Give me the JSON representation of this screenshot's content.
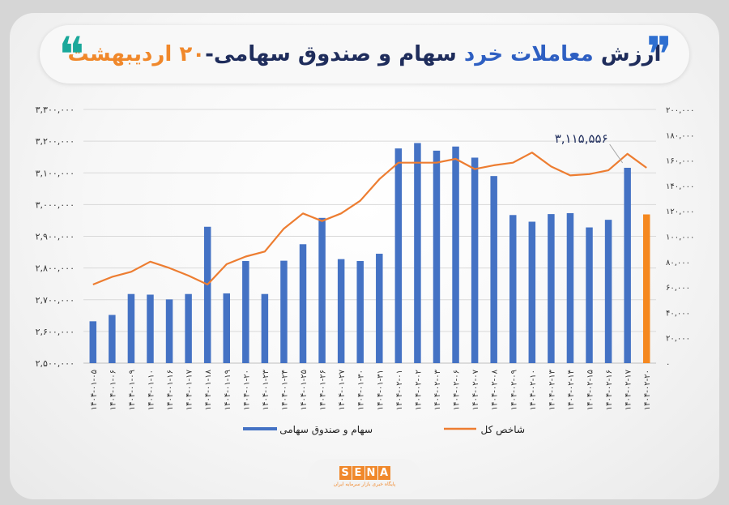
{
  "header": {
    "title_part1": "ارزش",
    "title_part2": "معاملات خرد",
    "title_part3": "سهام و صندوق سهامی-",
    "title_part4": "۲۰ اردیبهشت",
    "quote_open": "❞",
    "quote_close": "❝"
  },
  "logo": {
    "word": "SENA",
    "subtitle": "پایگاه خبری بازار سرمایه ایران"
  },
  "colors": {
    "bar": "#4472c4",
    "bar_highlight": "#f5881f",
    "line": "#ed7d31"
  },
  "chart_data": {
    "type": "bar",
    "categories": [
      "۱۴۰۴-۰۱-۰۵",
      "۱۴۰۴-۰۱-۰۶",
      "۱۴۰۴-۰۱-۰۹",
      "۱۴۰۴-۰۱-۱۰",
      "۱۴۰۴-۰۱-۱۶",
      "۱۴۰۴-۰۱-۱۷",
      "۱۴۰۴-۰۱-۱۸",
      "۱۴۰۴-۰۱-۱۹",
      "۱۴۰۴-۰۱-۲۰",
      "۱۴۰۴-۰۱-۲۳",
      "۱۴۰۴-۰۱-۲۴",
      "۱۴۰۴-۰۱-۲۵",
      "۱۴۰۴-۰۱-۲۶",
      "۱۴۰۴-۰۱-۲۷",
      "۱۴۰۴-۰۱-۳۰",
      "۱۴۰۴-۰۱-۳۱",
      "۱۴۰۴-۰۲-۰۱",
      "۱۴۰۴-۰۲-۰۲",
      "۱۴۰۴-۰۲-۰۳",
      "۱۴۰۴-۰۲-۰۶",
      "۱۴۰۴-۰۲-۰۷",
      "۱۴۰۴-۰۲-۰۸",
      "۱۴۰۴-۰۲-۰۹",
      "۱۴۰۴-۰۲-۱۰",
      "۱۴۰۴-۰۲-۱۳",
      "۱۴۰۴-۰۲-۱۴",
      "۱۴۰۴-۰۲-۱۵",
      "۱۴۰۴-۰۲-۱۶",
      "۱۴۰۴-۰۲-۱۷",
      "۱۴۰۴-۰۲-۲۰"
    ],
    "series": [
      {
        "name": "سهام و صندوق سهامی",
        "axis": "left",
        "values": [
          2632000,
          2652000,
          2718000,
          2716000,
          2701000,
          2718000,
          2930000,
          2720000,
          2822000,
          2718000,
          2823000,
          2875000,
          2958000,
          2828000,
          2822000,
          2845000,
          3177000,
          3194000,
          3170000,
          3183000,
          3148000,
          3090000,
          2967000,
          2946000,
          2970000,
          2973000,
          2928000,
          2952000,
          3116000,
          2969000
        ]
      },
      {
        "name": "شاخص کل",
        "axis": "right",
        "values": [
          62000,
          68000,
          72000,
          80000,
          75000,
          69000,
          62000,
          78000,
          84000,
          88000,
          106000,
          118000,
          112000,
          118000,
          128000,
          145000,
          158000,
          158000,
          158000,
          161000,
          153000,
          156000,
          158000,
          166000,
          155000,
          148000,
          149000,
          152000,
          165000,
          154000
        ]
      }
    ],
    "left_ylim": [
      2500000,
      3300000
    ],
    "right_ylim": [
      0,
      200000
    ],
    "left_ticks": [
      "۲,۵۰۰,۰۰۰",
      "۲,۶۰۰,۰۰۰",
      "۲,۷۰۰,۰۰۰",
      "۲,۸۰۰,۰۰۰",
      "۲,۹۰۰,۰۰۰",
      "۳,۰۰۰,۰۰۰",
      "۳,۱۰۰,۰۰۰",
      "۳,۲۰۰,۰۰۰",
      "۳,۳۰۰,۰۰۰"
    ],
    "right_ticks": [
      "۰",
      "۲۰,۰۰۰",
      "۴۰,۰۰۰",
      "۶۰,۰۰۰",
      "۸۰,۰۰۰",
      "۱۰۰,۰۰۰",
      "۱۲۰,۰۰۰",
      "۱۴۰,۰۰۰",
      "۱۶۰,۰۰۰",
      "۱۸۰,۰۰۰",
      "۲۰۰,۰۰۰"
    ],
    "annotation": {
      "text": "۳,۱۱۵,۵۵۶",
      "index": 28
    },
    "highlight_index": 29,
    "grid": true,
    "legend_position": "bottom"
  }
}
